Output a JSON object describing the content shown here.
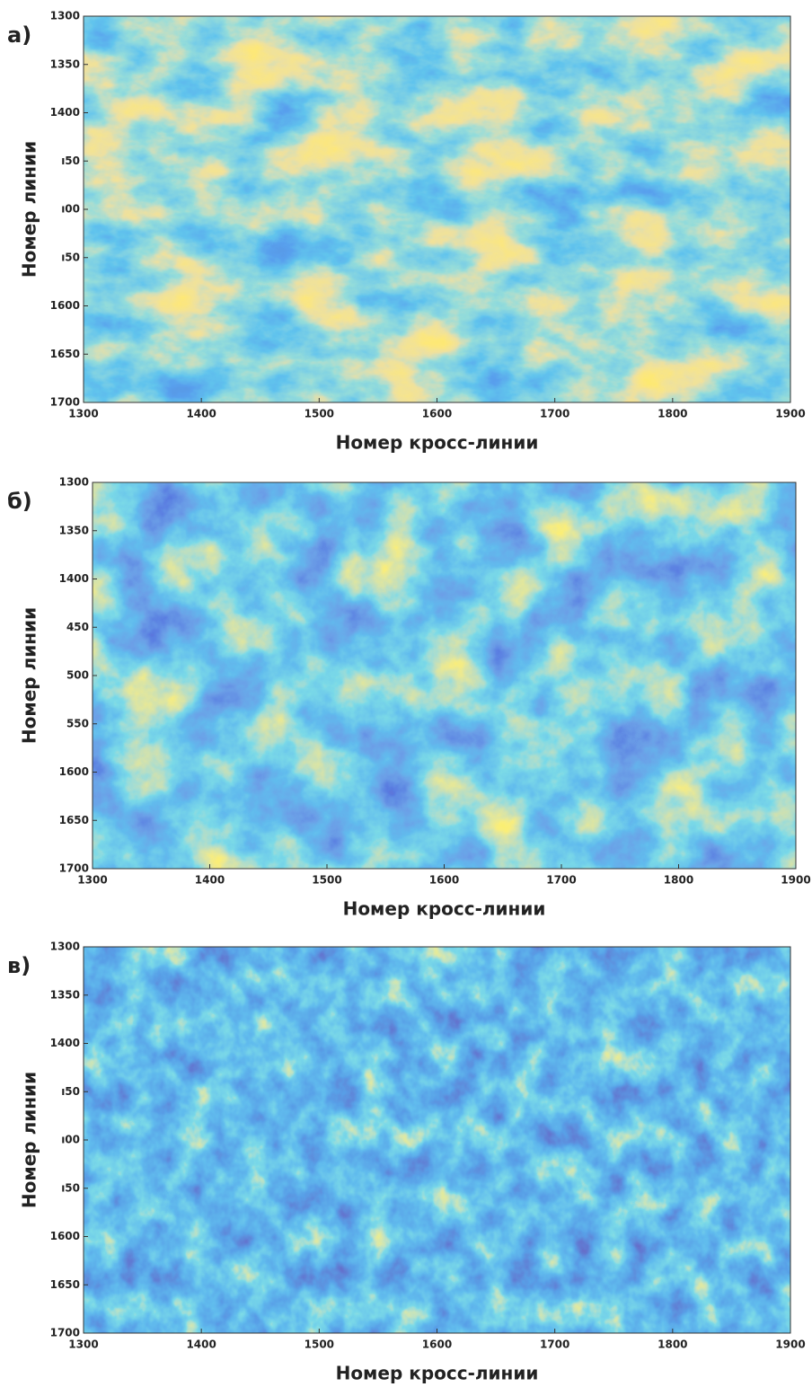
{
  "chart_data": [
    {
      "type": "heatmap",
      "panel_label": "а)",
      "xlabel": "Номер кросс-линии",
      "ylabel": "Номер линии",
      "xlim": [
        1300,
        1900
      ],
      "ylim": [
        1300,
        1700
      ],
      "xticks": [
        1300,
        1400,
        1500,
        1600,
        1700,
        1800,
        1900
      ],
      "yticks": [
        1300,
        1350,
        1400,
        {
          "value": 1450,
          "label": "ı50"
        },
        {
          "value": 1500,
          "label": "ı00"
        },
        {
          "value": 1550,
          "label": "ı50"
        },
        1600,
        1650,
        1700
      ]
    },
    {
      "type": "heatmap",
      "panel_label": "б)",
      "xlabel": "Номер кросс-линии",
      "ylabel": "Номер линии",
      "xlim": [
        1300,
        1900
      ],
      "ylim": [
        1300,
        1700
      ],
      "xticks": [
        1300,
        1400,
        1500,
        1600,
        1700,
        1800,
        1900
      ],
      "yticks": [
        1300,
        1350,
        1400,
        {
          "value": 1450,
          "label": "450"
        },
        {
          "value": 1500,
          "label": "500"
        },
        {
          "value": 1550,
          "label": "550"
        },
        1600,
        1650,
        1700
      ]
    },
    {
      "type": "heatmap",
      "panel_label": "в)",
      "xlabel": "Номер кросс-линии",
      "ylabel": "Номер линии",
      "xlim": [
        1300,
        1900
      ],
      "ylim": [
        1300,
        1700
      ],
      "xticks": [
        1300,
        1400,
        1500,
        1600,
        1700,
        1800,
        1900
      ],
      "yticks": [
        1300,
        1350,
        1400,
        {
          "value": 1450,
          "label": "ı50"
        },
        {
          "value": 1500,
          "label": "ı00"
        },
        {
          "value": 1550,
          "label": "ı50"
        },
        1600,
        1650,
        1700
      ]
    }
  ]
}
